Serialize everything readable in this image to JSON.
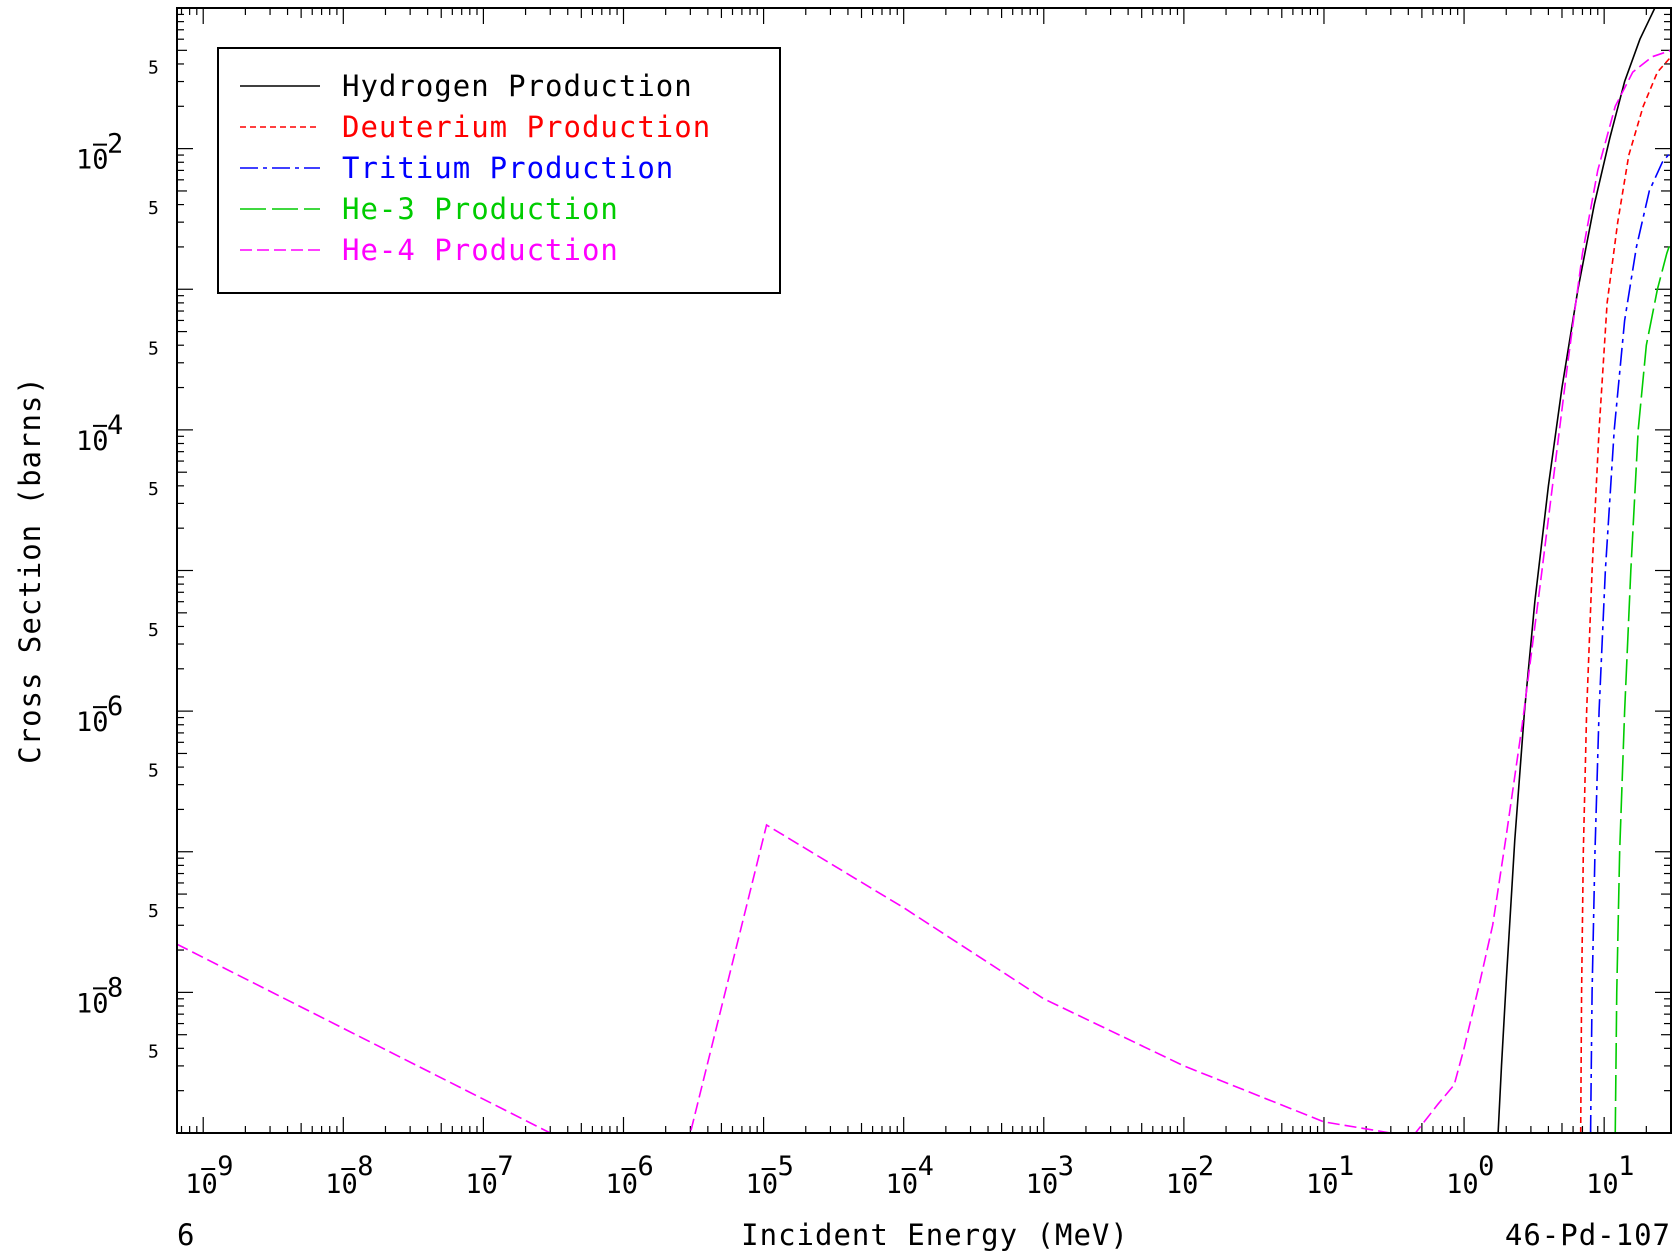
{
  "chart_data": {
    "type": "line",
    "xlabel": "Incident Energy (MeV)",
    "ylabel": "Cross Section (barns)",
    "footer_left": "6",
    "footer_right": "46-Pd-107",
    "x_scale": "log",
    "y_scale": "log",
    "xlim": [
      6.5e-10,
      30.0
    ],
    "ylim": [
      1e-09,
      0.1
    ],
    "x_ticks": [
      {
        "exp": "9",
        "value": 1e-09
      },
      {
        "exp": "8",
        "value": 1e-08
      },
      {
        "exp": "7",
        "value": 1e-07
      },
      {
        "exp": "6",
        "value": 1e-06
      },
      {
        "exp": "5",
        "value": 1e-05
      },
      {
        "exp": "4",
        "value": 0.0001
      },
      {
        "exp": "3",
        "value": 0.001
      },
      {
        "exp": "2",
        "value": 0.01
      },
      {
        "exp": "1",
        "value": 0.1
      },
      {
        "exp": "0",
        "value": 1.0
      },
      {
        "exp": "1",
        "value": 10.0
      }
    ],
    "y_ticks": [
      {
        "exp": "2",
        "value": 0.01
      },
      {
        "exp": "4",
        "value": 0.0001
      },
      {
        "exp": "6",
        "value": 1e-06
      },
      {
        "exp": "8",
        "value": 1e-08
      }
    ],
    "y_minor_label": "5",
    "legend_position": "top-left",
    "series": [
      {
        "name": "Hydrogen Production",
        "color": "#000000",
        "dash": "",
        "points": [
          [
            1.75,
            1e-09
          ],
          [
            1.85,
            3e-09
          ],
          [
            2.0,
            1.2e-08
          ],
          [
            2.3,
            1.2e-07
          ],
          [
            2.7,
            1e-06
          ],
          [
            3.2,
            6e-06
          ],
          [
            4.0,
            4e-05
          ],
          [
            5.0,
            0.0002
          ],
          [
            6.5,
            0.001
          ],
          [
            8.5,
            0.004
          ],
          [
            11,
            0.012
          ],
          [
            14,
            0.03
          ],
          [
            18,
            0.06
          ],
          [
            23,
            0.1
          ],
          [
            30,
            0.135
          ]
        ]
      },
      {
        "name": "Deuterium Production",
        "color": "#ff0000",
        "dash": "6,4",
        "points": [
          [
            6.8,
            1e-09
          ],
          [
            6.9,
            1e-08
          ],
          [
            7.1,
            1e-07
          ],
          [
            7.5,
            1e-06
          ],
          [
            8.2,
            1e-05
          ],
          [
            9.2,
            0.0001
          ],
          [
            10.5,
            0.0008
          ],
          [
            12.5,
            0.003
          ],
          [
            15,
            0.009
          ],
          [
            19,
            0.02
          ],
          [
            24,
            0.035
          ],
          [
            30,
            0.045
          ]
        ]
      },
      {
        "name": "Tritium Production",
        "color": "#0000ff",
        "dash": "18,5,4,5",
        "points": [
          [
            8.0,
            1e-09
          ],
          [
            8.2,
            1e-08
          ],
          [
            8.6,
            1e-07
          ],
          [
            9.2,
            1e-06
          ],
          [
            10.2,
            1e-05
          ],
          [
            11.8,
            0.0001
          ],
          [
            14,
            0.0006
          ],
          [
            17,
            0.002
          ],
          [
            21,
            0.005
          ],
          [
            26,
            0.008
          ],
          [
            30,
            0.0095
          ]
        ]
      },
      {
        "name": "He-3 Production",
        "color": "#00cc00",
        "dash": "26,6",
        "points": [
          [
            12.0,
            1e-09
          ],
          [
            12.3,
            1e-08
          ],
          [
            12.9,
            1e-07
          ],
          [
            14,
            1e-06
          ],
          [
            15.5,
            1e-05
          ],
          [
            17.5,
            0.0001
          ],
          [
            20,
            0.0004
          ],
          [
            24,
            0.001
          ],
          [
            28,
            0.0018
          ],
          [
            30,
            0.0022
          ]
        ]
      },
      {
        "name": "He-4 Production",
        "color": "#ff00ff",
        "dash": "12,5",
        "points": [
          [
            6.5e-10,
            2.2e-08
          ],
          [
            3e-07,
            1e-09
          ],
          [
            3e-06,
            1e-09
          ],
          [
            1.05e-05,
            1.55e-07
          ],
          [
            0.0001,
            4e-08
          ],
          [
            0.001,
            9e-09
          ],
          [
            0.01,
            3e-09
          ],
          [
            0.1,
            1.2e-09
          ],
          [
            0.3,
            1e-09
          ],
          [
            0.45,
            1e-09
          ],
          [
            0.65,
            1.6e-09
          ],
          [
            0.85,
            2.2e-09
          ],
          [
            1.0,
            4e-09
          ],
          [
            1.3,
            1.2e-08
          ],
          [
            1.6,
            3e-08
          ],
          [
            2.0,
            1.3e-07
          ],
          [
            2.6,
            8e-07
          ],
          [
            3.5,
            8e-06
          ],
          [
            4.5,
            6e-05
          ],
          [
            5.5,
            0.0003
          ],
          [
            7,
            0.0018
          ],
          [
            9,
            0.007
          ],
          [
            12,
            0.02
          ],
          [
            16,
            0.035
          ],
          [
            22,
            0.045
          ],
          [
            30,
            0.05
          ]
        ]
      }
    ]
  }
}
